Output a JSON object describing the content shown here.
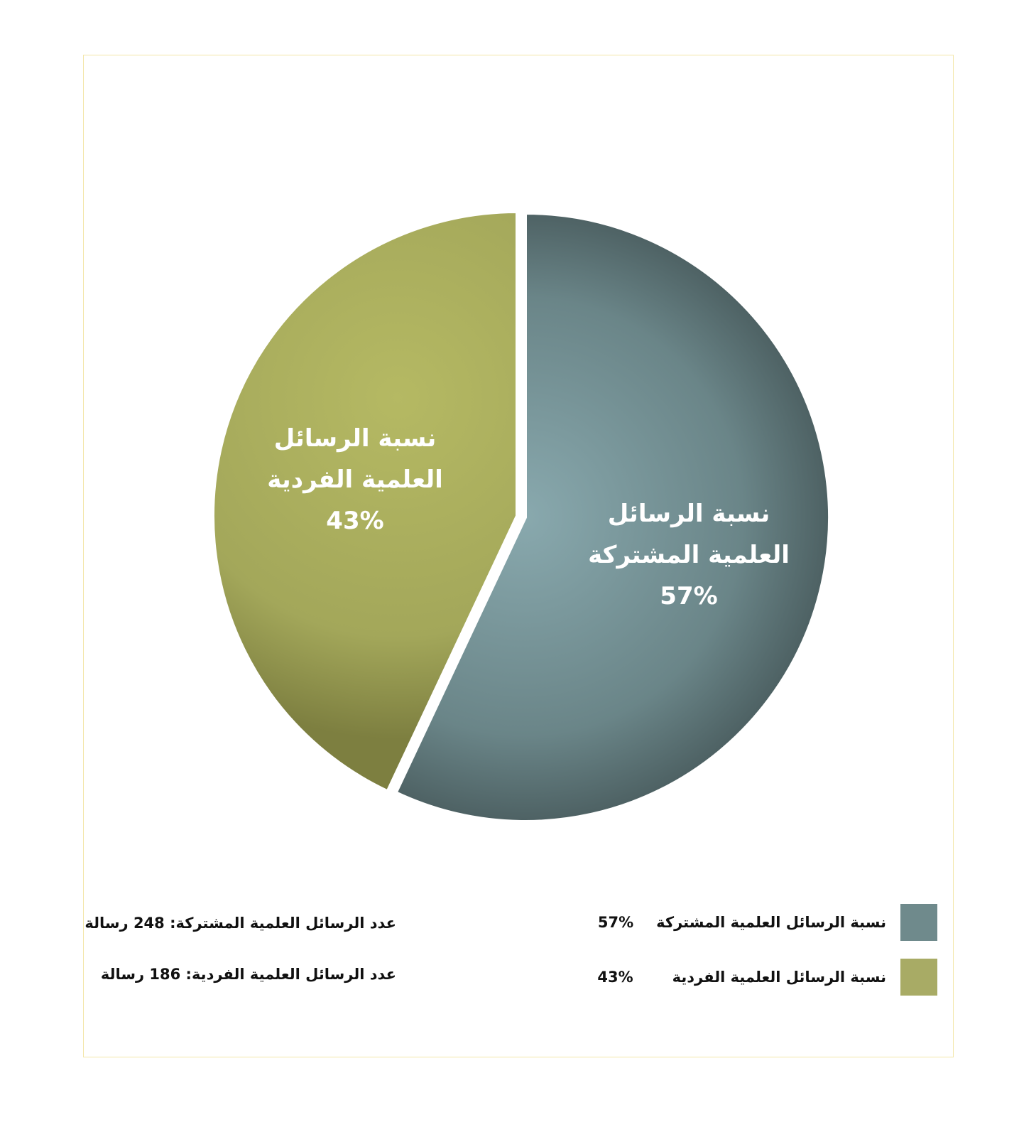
{
  "chart_data": {
    "type": "pie",
    "slices": [
      {
        "label": "نسبة الرسائل العلمية المشتركة",
        "value": 57,
        "display": "57%",
        "color": "#6f8a8c"
      },
      {
        "label": "نسبة الرسائل العلمية الفردية",
        "value": 43,
        "display": "43%",
        "color": "#a8ab62"
      }
    ],
    "pie_labels": [
      {
        "line1": "نسبة الرسائل",
        "line2": "العلمية المشتركة",
        "pct": "57%"
      },
      {
        "line1": "نسبة الرسائل",
        "line2": "العلمية الفردية",
        "pct": "43%"
      }
    ],
    "legend": [
      {
        "label": "نسبة الرسائل العلمية المشتركة",
        "pct": "57%"
      },
      {
        "label": "نسبة الرسائل العلمية الفردية",
        "pct": "43%"
      }
    ],
    "counts": [
      "عدد الرسائل العلمية المشتركة: 248 رسالة",
      "عدد الرسائل العلمية الفردية: 186 رسالة"
    ],
    "legend_placement": "bottom"
  }
}
